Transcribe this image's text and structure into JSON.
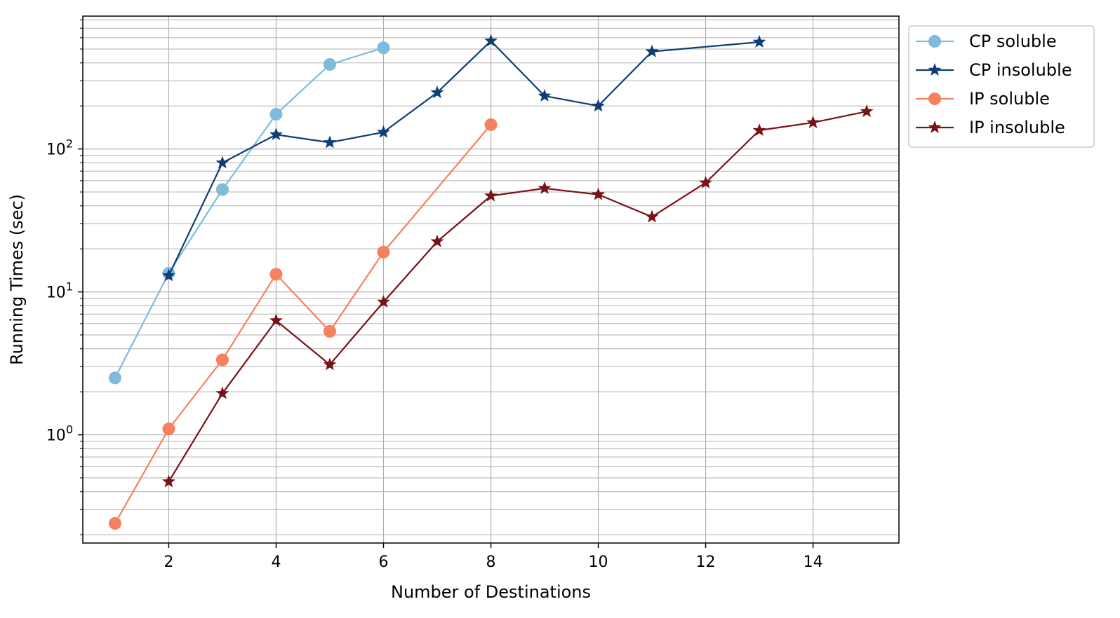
{
  "chart_data": {
    "type": "line",
    "title": "",
    "xlabel": "Number of Destinations",
    "ylabel": "Running Times (sec)",
    "xlim": [
      0.4,
      15.6
    ],
    "ylim": [
      0.175,
      850
    ],
    "yscale": "log",
    "xticks": [
      2,
      4,
      6,
      8,
      10,
      12,
      14
    ],
    "xtick_labels": [
      "2",
      "4",
      "6",
      "8",
      "10",
      "12",
      "14"
    ],
    "yticks": [
      1,
      10,
      100
    ],
    "ytick_labels": [
      {
        "base": "10",
        "exp": "0"
      },
      {
        "base": "10",
        "exp": "1"
      },
      {
        "base": "10",
        "exp": "2"
      }
    ],
    "grid": true,
    "legend_position": "outside-top-right",
    "series": [
      {
        "name": "CP soluble",
        "marker": "circle",
        "color": "#7fbbdb",
        "x": [
          1,
          2,
          3,
          4,
          5,
          6
        ],
        "y": [
          2.5,
          13.5,
          52,
          175,
          390,
          510
        ]
      },
      {
        "name": "CP insoluble",
        "marker": "star",
        "color": "#0d3e74",
        "x": [
          2,
          3,
          4,
          5,
          6,
          7,
          8,
          9,
          10,
          11,
          13
        ],
        "y": [
          13,
          80,
          126,
          111,
          131,
          248,
          570,
          235,
          200,
          480,
          560
        ]
      },
      {
        "name": "IP soluble",
        "marker": "circle",
        "color": "#f7815e",
        "x": [
          1,
          2,
          3,
          4,
          5,
          6,
          8
        ],
        "y": [
          0.24,
          1.1,
          3.35,
          13.3,
          5.3,
          19,
          148
        ]
      },
      {
        "name": "IP insoluble",
        "marker": "star",
        "color": "#7b1118",
        "x": [
          2,
          3,
          4,
          5,
          6,
          7,
          8,
          9,
          10,
          11,
          12,
          13,
          14,
          15
        ],
        "y": [
          0.47,
          1.95,
          6.3,
          3.1,
          8.5,
          22.5,
          47,
          53,
          48,
          33.5,
          58,
          135,
          153,
          183
        ]
      }
    ]
  }
}
